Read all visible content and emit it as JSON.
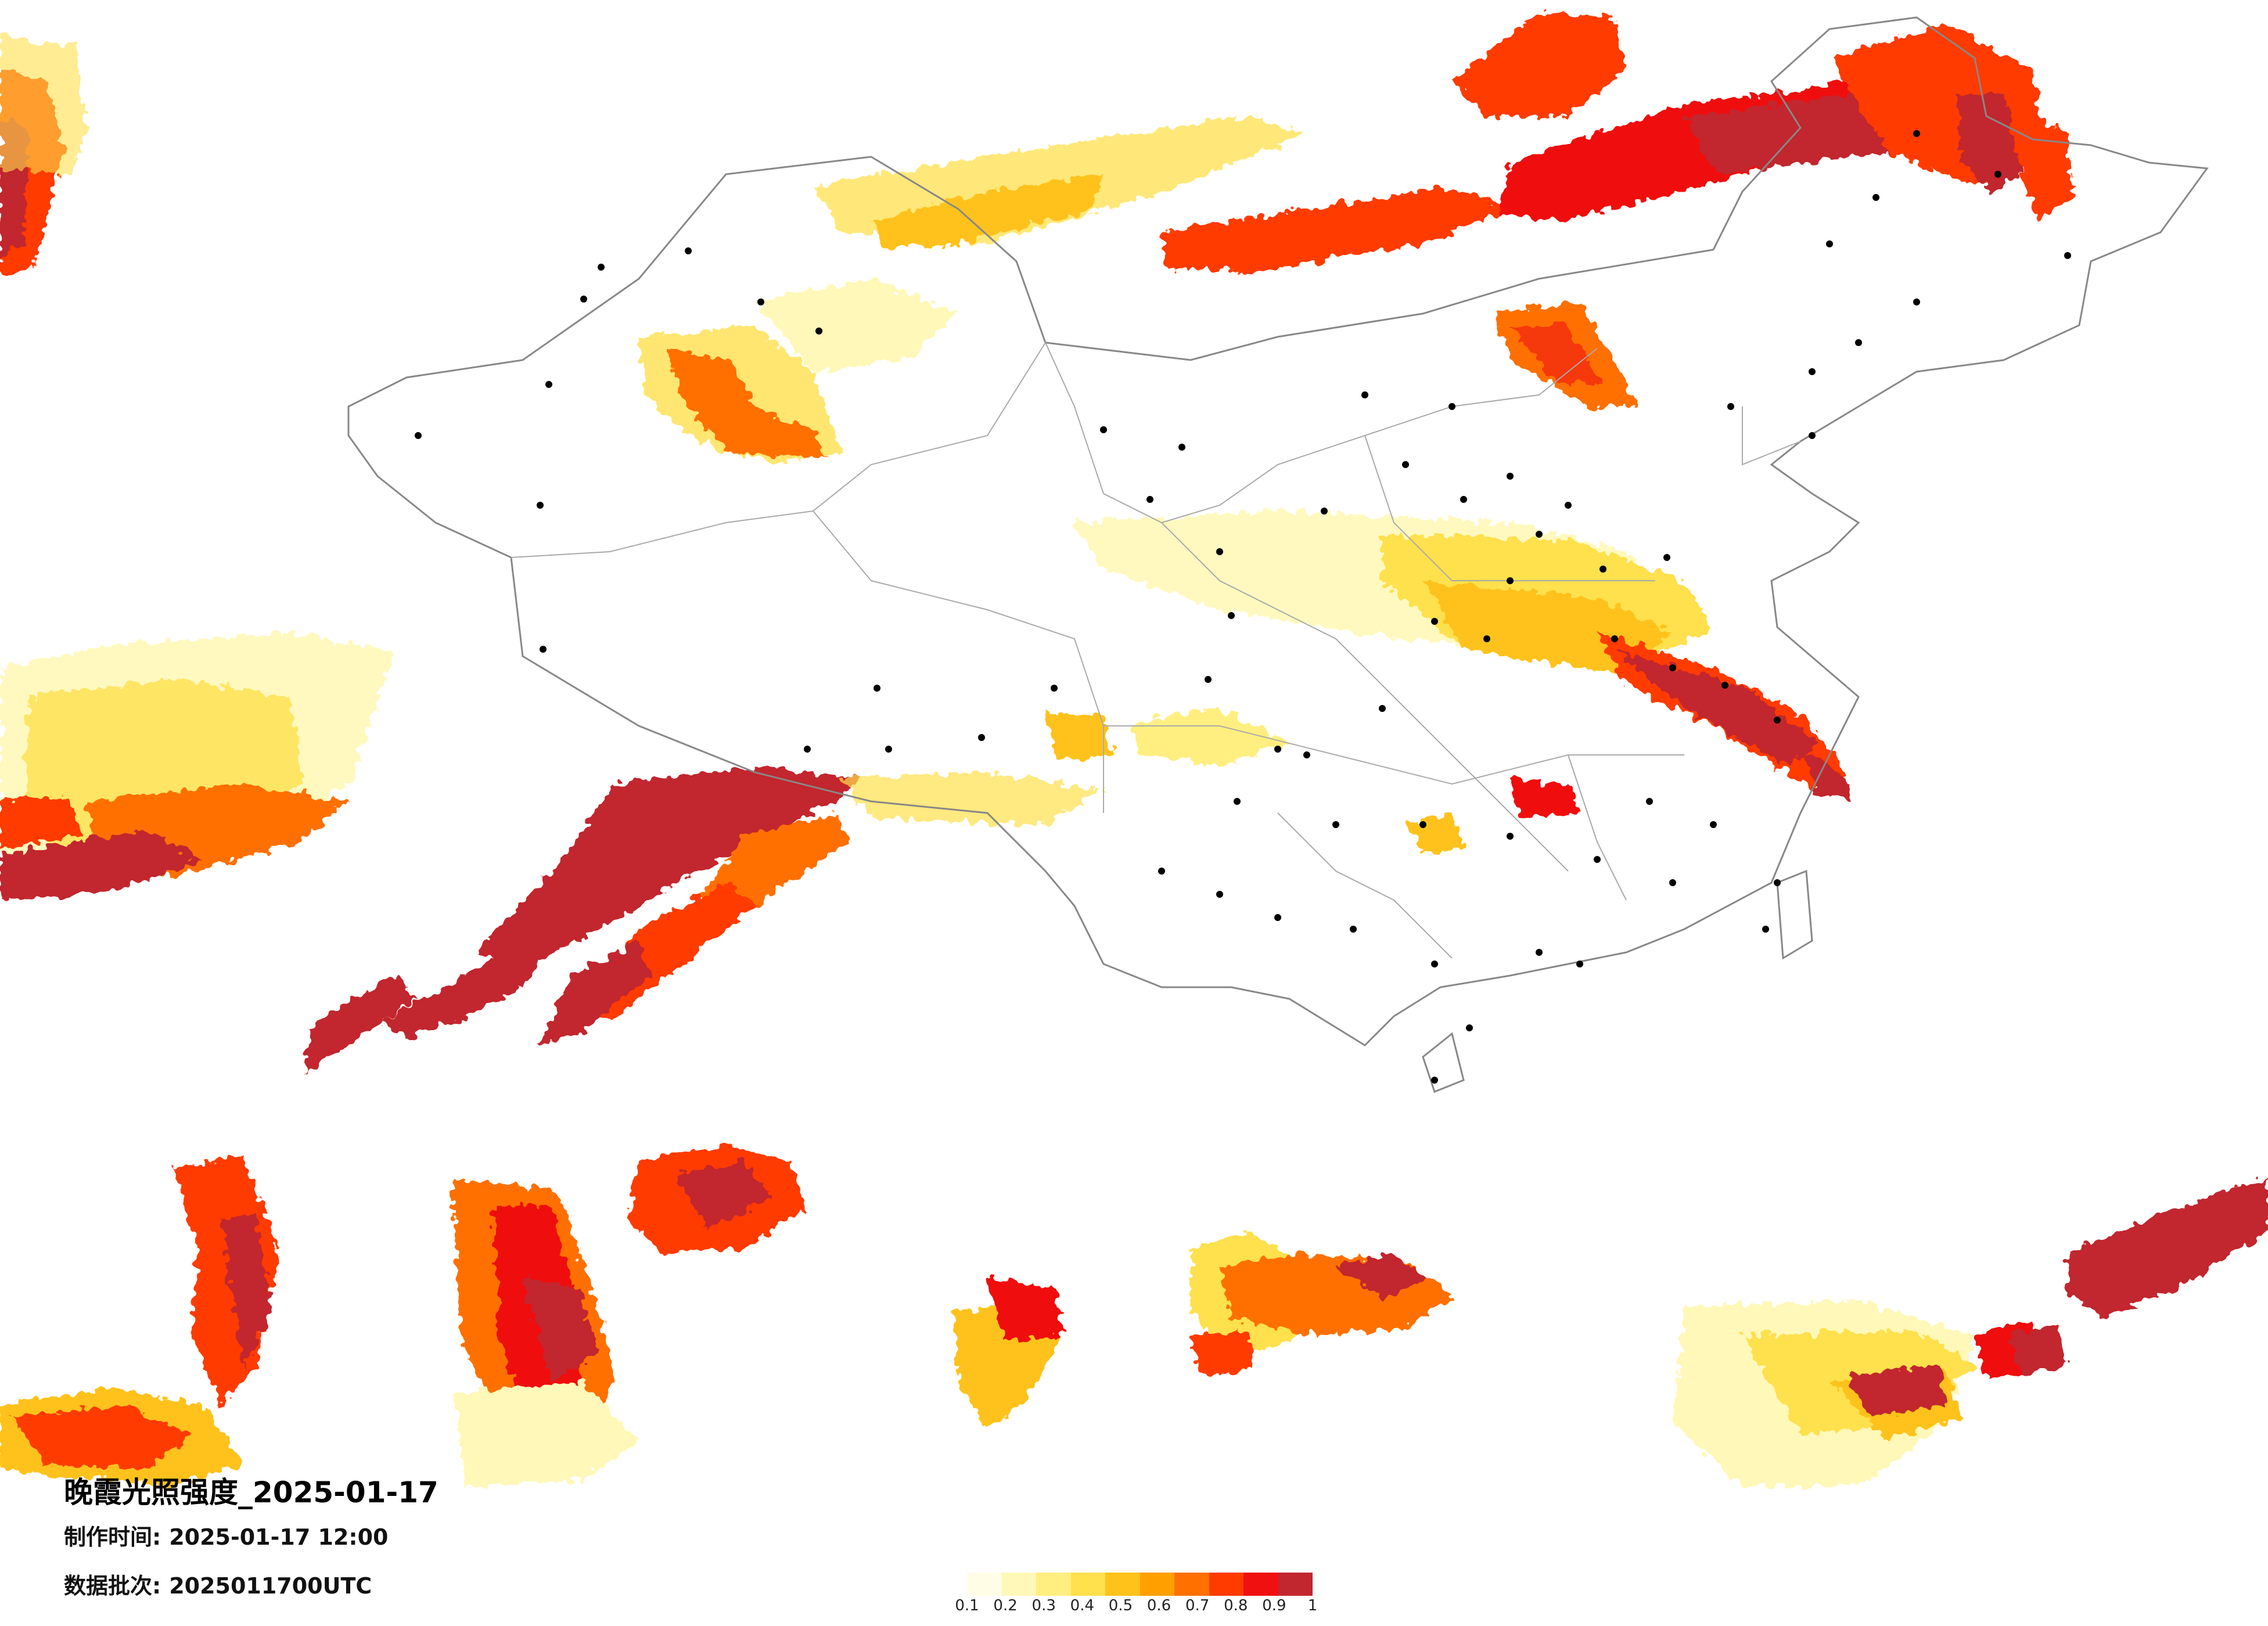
{
  "title": "晚霞光照强度_2025-01-17",
  "made_time": {
    "label": "制作时间:",
    "value": "2025-01-17 12:00"
  },
  "data_batch": {
    "label": "数据批次:",
    "value": "2025011700UTC"
  },
  "legend": {
    "ticks": [
      "0.1",
      "0.2",
      "0.3",
      "0.4",
      "0.5",
      "0.6",
      "0.7",
      "0.8",
      "0.9",
      "1"
    ],
    "colors": [
      "#fffde6",
      "#fff8b8",
      "#ffef80",
      "#ffe04d",
      "#ffc21a",
      "#ffa000",
      "#ff7000",
      "#ff3b00",
      "#f01010",
      "#c2262e"
    ]
  },
  "map_layers": [
    "country-borders",
    "province-borders",
    "city-markers",
    "sunset-glow-intensity-raster"
  ]
}
